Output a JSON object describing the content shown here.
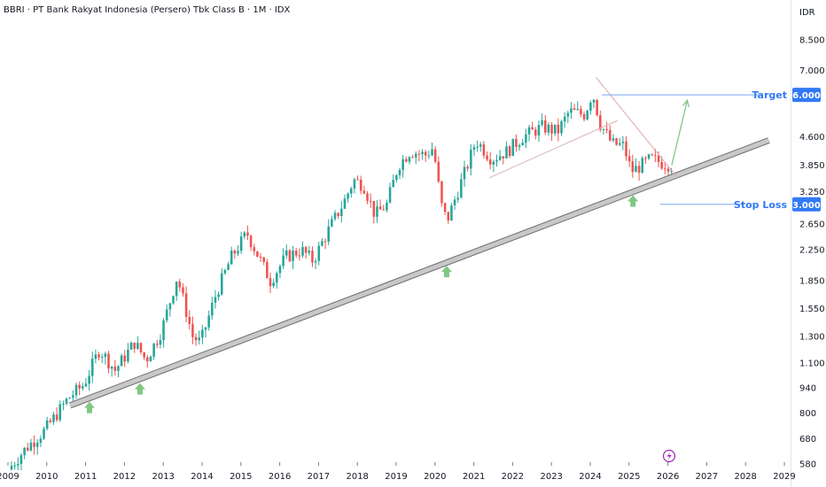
{
  "header": {
    "title": "BBRI · PT Bank Rakyat Indonesia (Persero) Tbk Class B · 1M · IDX"
  },
  "axis": {
    "currency": "IDR"
  },
  "chart_data": {
    "type": "candlestick",
    "symbol": "BBRI",
    "interval": "1M",
    "exchange": "IDX",
    "y_scale": "log",
    "ylim": [
      580,
      9500
    ],
    "xlim": [
      2009.0,
      2029.0
    ],
    "y_ticks": [
      8500,
      7000,
      4600,
      3850,
      3250,
      2650,
      2250,
      1850,
      1550,
      1300,
      1100,
      940,
      800,
      680,
      580
    ],
    "y_tick_labels": [
      "8.500",
      "7.000",
      "4.600",
      "3.850",
      "3.250",
      "2.650",
      "2.250",
      "1.850",
      "1.550",
      "1.300",
      "1.100",
      "940",
      "800",
      "680",
      "580"
    ],
    "x_ticks": [
      2009,
      2010,
      2011,
      2012,
      2013,
      2014,
      2015,
      2016,
      2017,
      2018,
      2019,
      2020,
      2021,
      2022,
      2023,
      2024,
      2025,
      2026,
      2027,
      2028,
      2029
    ],
    "x_tick_labels": [
      "2009",
      "2010",
      "2011",
      "2012",
      "2013",
      "2014",
      "2015",
      "2016",
      "2017",
      "2018",
      "2019",
      "2020",
      "2021",
      "2022",
      "2023",
      "2024",
      "2025",
      "2026",
      "2027",
      "2028",
      "2029"
    ],
    "price_anchors": [
      [
        2009.05,
        560
      ],
      [
        2009.5,
        640
      ],
      [
        2010.0,
        720
      ],
      [
        2010.6,
        880
      ],
      [
        2011.0,
        960
      ],
      [
        2011.4,
        1200
      ],
      [
        2011.8,
        1050
      ],
      [
        2012.3,
        1250
      ],
      [
        2012.6,
        1120
      ],
      [
        2013.0,
        1350
      ],
      [
        2013.4,
        1900
      ],
      [
        2013.8,
        1300
      ],
      [
        2014.0,
        1250
      ],
      [
        2014.4,
        1700
      ],
      [
        2014.8,
        2150
      ],
      [
        2015.2,
        2500
      ],
      [
        2015.5,
        2150
      ],
      [
        2015.8,
        1850
      ],
      [
        2016.2,
        2150
      ],
      [
        2016.6,
        2250
      ],
      [
        2016.9,
        2100
      ],
      [
        2017.3,
        2550
      ],
      [
        2017.7,
        3050
      ],
      [
        2017.95,
        3500
      ],
      [
        2018.2,
        3400
      ],
      [
        2018.5,
        2800
      ],
      [
        2018.8,
        3000
      ],
      [
        2019.1,
        3850
      ],
      [
        2019.4,
        4200
      ],
      [
        2019.8,
        4100
      ],
      [
        2020.0,
        4300
      ],
      [
        2020.2,
        3000
      ],
      [
        2020.35,
        2700
      ],
      [
        2020.6,
        3200
      ],
      [
        2020.9,
        3900
      ],
      [
        2021.1,
        4500
      ],
      [
        2021.5,
        4000
      ],
      [
        2021.9,
        4200
      ],
      [
        2022.3,
        4600
      ],
      [
        2022.8,
        4900
      ],
      [
        2023.2,
        4750
      ],
      [
        2023.5,
        5400
      ],
      [
        2023.9,
        5300
      ],
      [
        2024.1,
        6100
      ],
      [
        2024.3,
        5000
      ],
      [
        2024.6,
        4400
      ],
      [
        2024.9,
        4350
      ],
      [
        2025.1,
        3700
      ],
      [
        2025.3,
        3800
      ],
      [
        2025.6,
        4000
      ],
      [
        2025.9,
        3900
      ],
      [
        2026.1,
        3850
      ]
    ],
    "long_trendline": {
      "start": [
        2010.6,
        840
      ],
      "end": [
        2028.6,
        4500
      ]
    },
    "upper_trendline": {
      "start": [
        2024.15,
        6700
      ],
      "end": [
        2026.2,
        3600
      ]
    },
    "channel_line": {
      "start": [
        2021.4,
        3550
      ],
      "end": [
        2024.7,
        5100
      ]
    },
    "target": {
      "label": "Target",
      "value": 6000,
      "value_label": "6.000",
      "x_start": 2024.3
    },
    "stop_loss": {
      "label": "Stop Loss",
      "value": 3000,
      "value_label": "3.000",
      "x_start": 2025.8
    },
    "projection_arrow": {
      "start": [
        2026.1,
        3850
      ],
      "end": [
        2026.5,
        5800
      ]
    },
    "support_arrows": [
      [
        2011.1,
        880
      ],
      [
        2012.4,
        990
      ],
      [
        2020.3,
        2080
      ],
      [
        2025.1,
        3250
      ]
    ],
    "colors": {
      "up": "#26a69a",
      "down": "#ef5350",
      "target": "#3179f5",
      "trendline": "#c8c8c8",
      "arrow": "#81c784",
      "event": "#9c27b0"
    }
  }
}
